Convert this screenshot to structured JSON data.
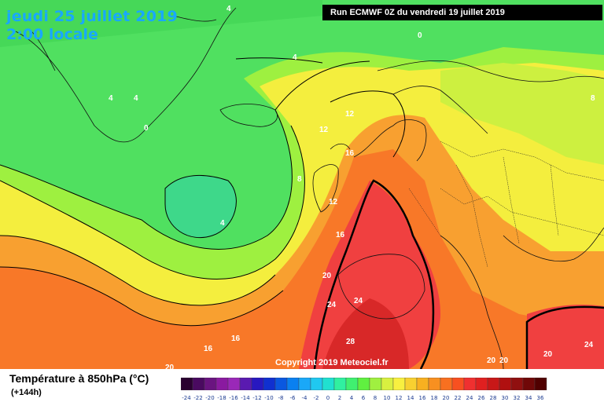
{
  "header": {
    "date": "jeudi 25 juillet 2019",
    "time": "2:00 locale",
    "run": "Run ECMWF 0Z du vendredi 19 juillet 2019"
  },
  "copyright": "Copyright 2019 Meteociel.fr",
  "legend": {
    "title": "Température à 850hPa (°C)",
    "lead": "(+144h)",
    "ticks": [
      "-24",
      "-22",
      "-20",
      "-18",
      "-16",
      "-14",
      "-12",
      "-10",
      "-8",
      "-6",
      "-4",
      "-2",
      "0",
      "2",
      "4",
      "6",
      "8",
      "10",
      "12",
      "14",
      "16",
      "18",
      "20",
      "22",
      "24",
      "26",
      "28",
      "30",
      "32",
      "34",
      "36"
    ],
    "colors": [
      "#2a0030",
      "#4a0a60",
      "#6a1480",
      "#8a1aa0",
      "#9a28b8",
      "#5a1ab0",
      "#2818c0",
      "#1030d0",
      "#0a58e0",
      "#0a80f0",
      "#1aa8f8",
      "#20c8f0",
      "#20e0d0",
      "#30f0a0",
      "#40f070",
      "#60f040",
      "#a0f040",
      "#d8f040",
      "#f8f040",
      "#f8d030",
      "#f8b020",
      "#f89020",
      "#f87020",
      "#f85020",
      "#f03030",
      "#e02020",
      "#c81818",
      "#b01010",
      "#901010",
      "#700808",
      "#500000"
    ]
  },
  "isotherms": {
    "labels": [
      "4",
      "4",
      "4",
      "4",
      "0",
      "0",
      "8",
      "12",
      "12",
      "16",
      "12",
      "16",
      "8",
      "4",
      "20",
      "24",
      "24",
      "28",
      "16",
      "16",
      "20",
      "20",
      "20",
      "24",
      "20"
    ]
  },
  "colors": {
    "green": "#52e052",
    "light_green": "#88ee44",
    "yellow": "#f8f040",
    "orange": "#f8a030",
    "red": "#f04040",
    "sea_lightgreen": "#60e870"
  }
}
